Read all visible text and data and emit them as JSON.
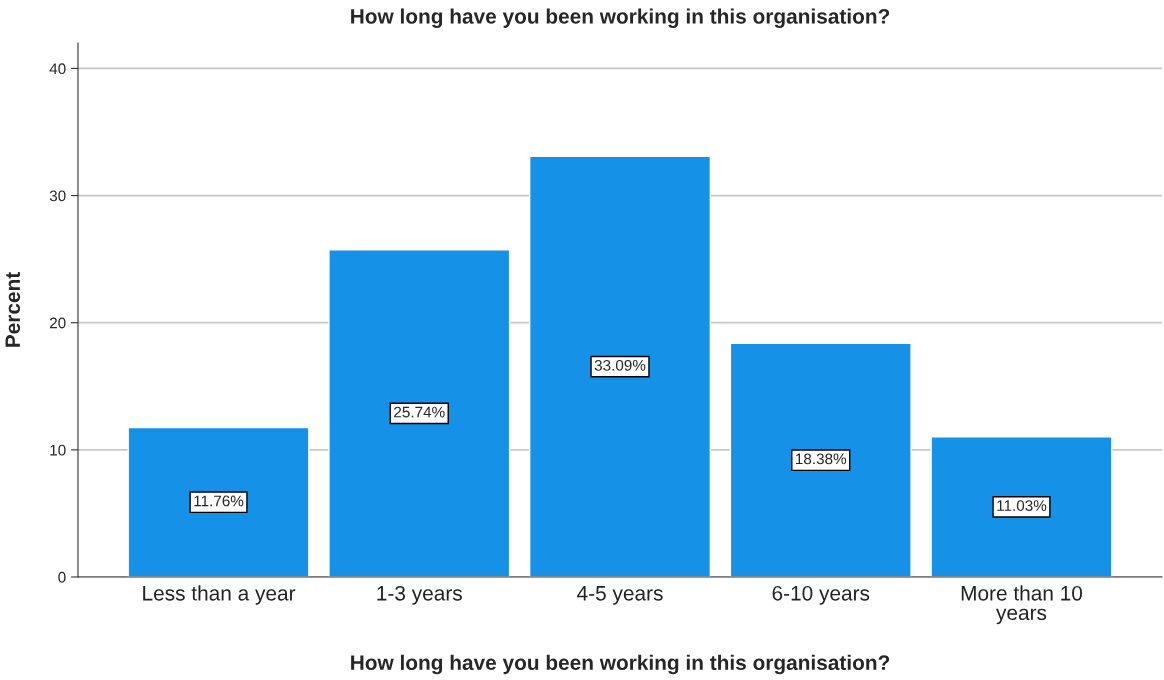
{
  "chart_data": {
    "type": "bar",
    "title": "How long have you been working in this organisation?",
    "xlabel": "How long have you been working in this organisation?",
    "ylabel": "Percent",
    "categories": [
      "Less than a year",
      "1-3 years",
      "4-5 years",
      "6-10 years",
      "More than 10\nyears"
    ],
    "values": [
      11.76,
      25.74,
      33.09,
      18.38,
      11.03
    ],
    "value_labels": [
      "11.76%",
      "25.74%",
      "33.09%",
      "18.38%",
      "11.03%"
    ],
    "color": "#1591e8",
    "ylim": [
      0,
      42
    ],
    "yticks": [
      0,
      10,
      20,
      30,
      40
    ],
    "grid": "y",
    "legend": false
  }
}
